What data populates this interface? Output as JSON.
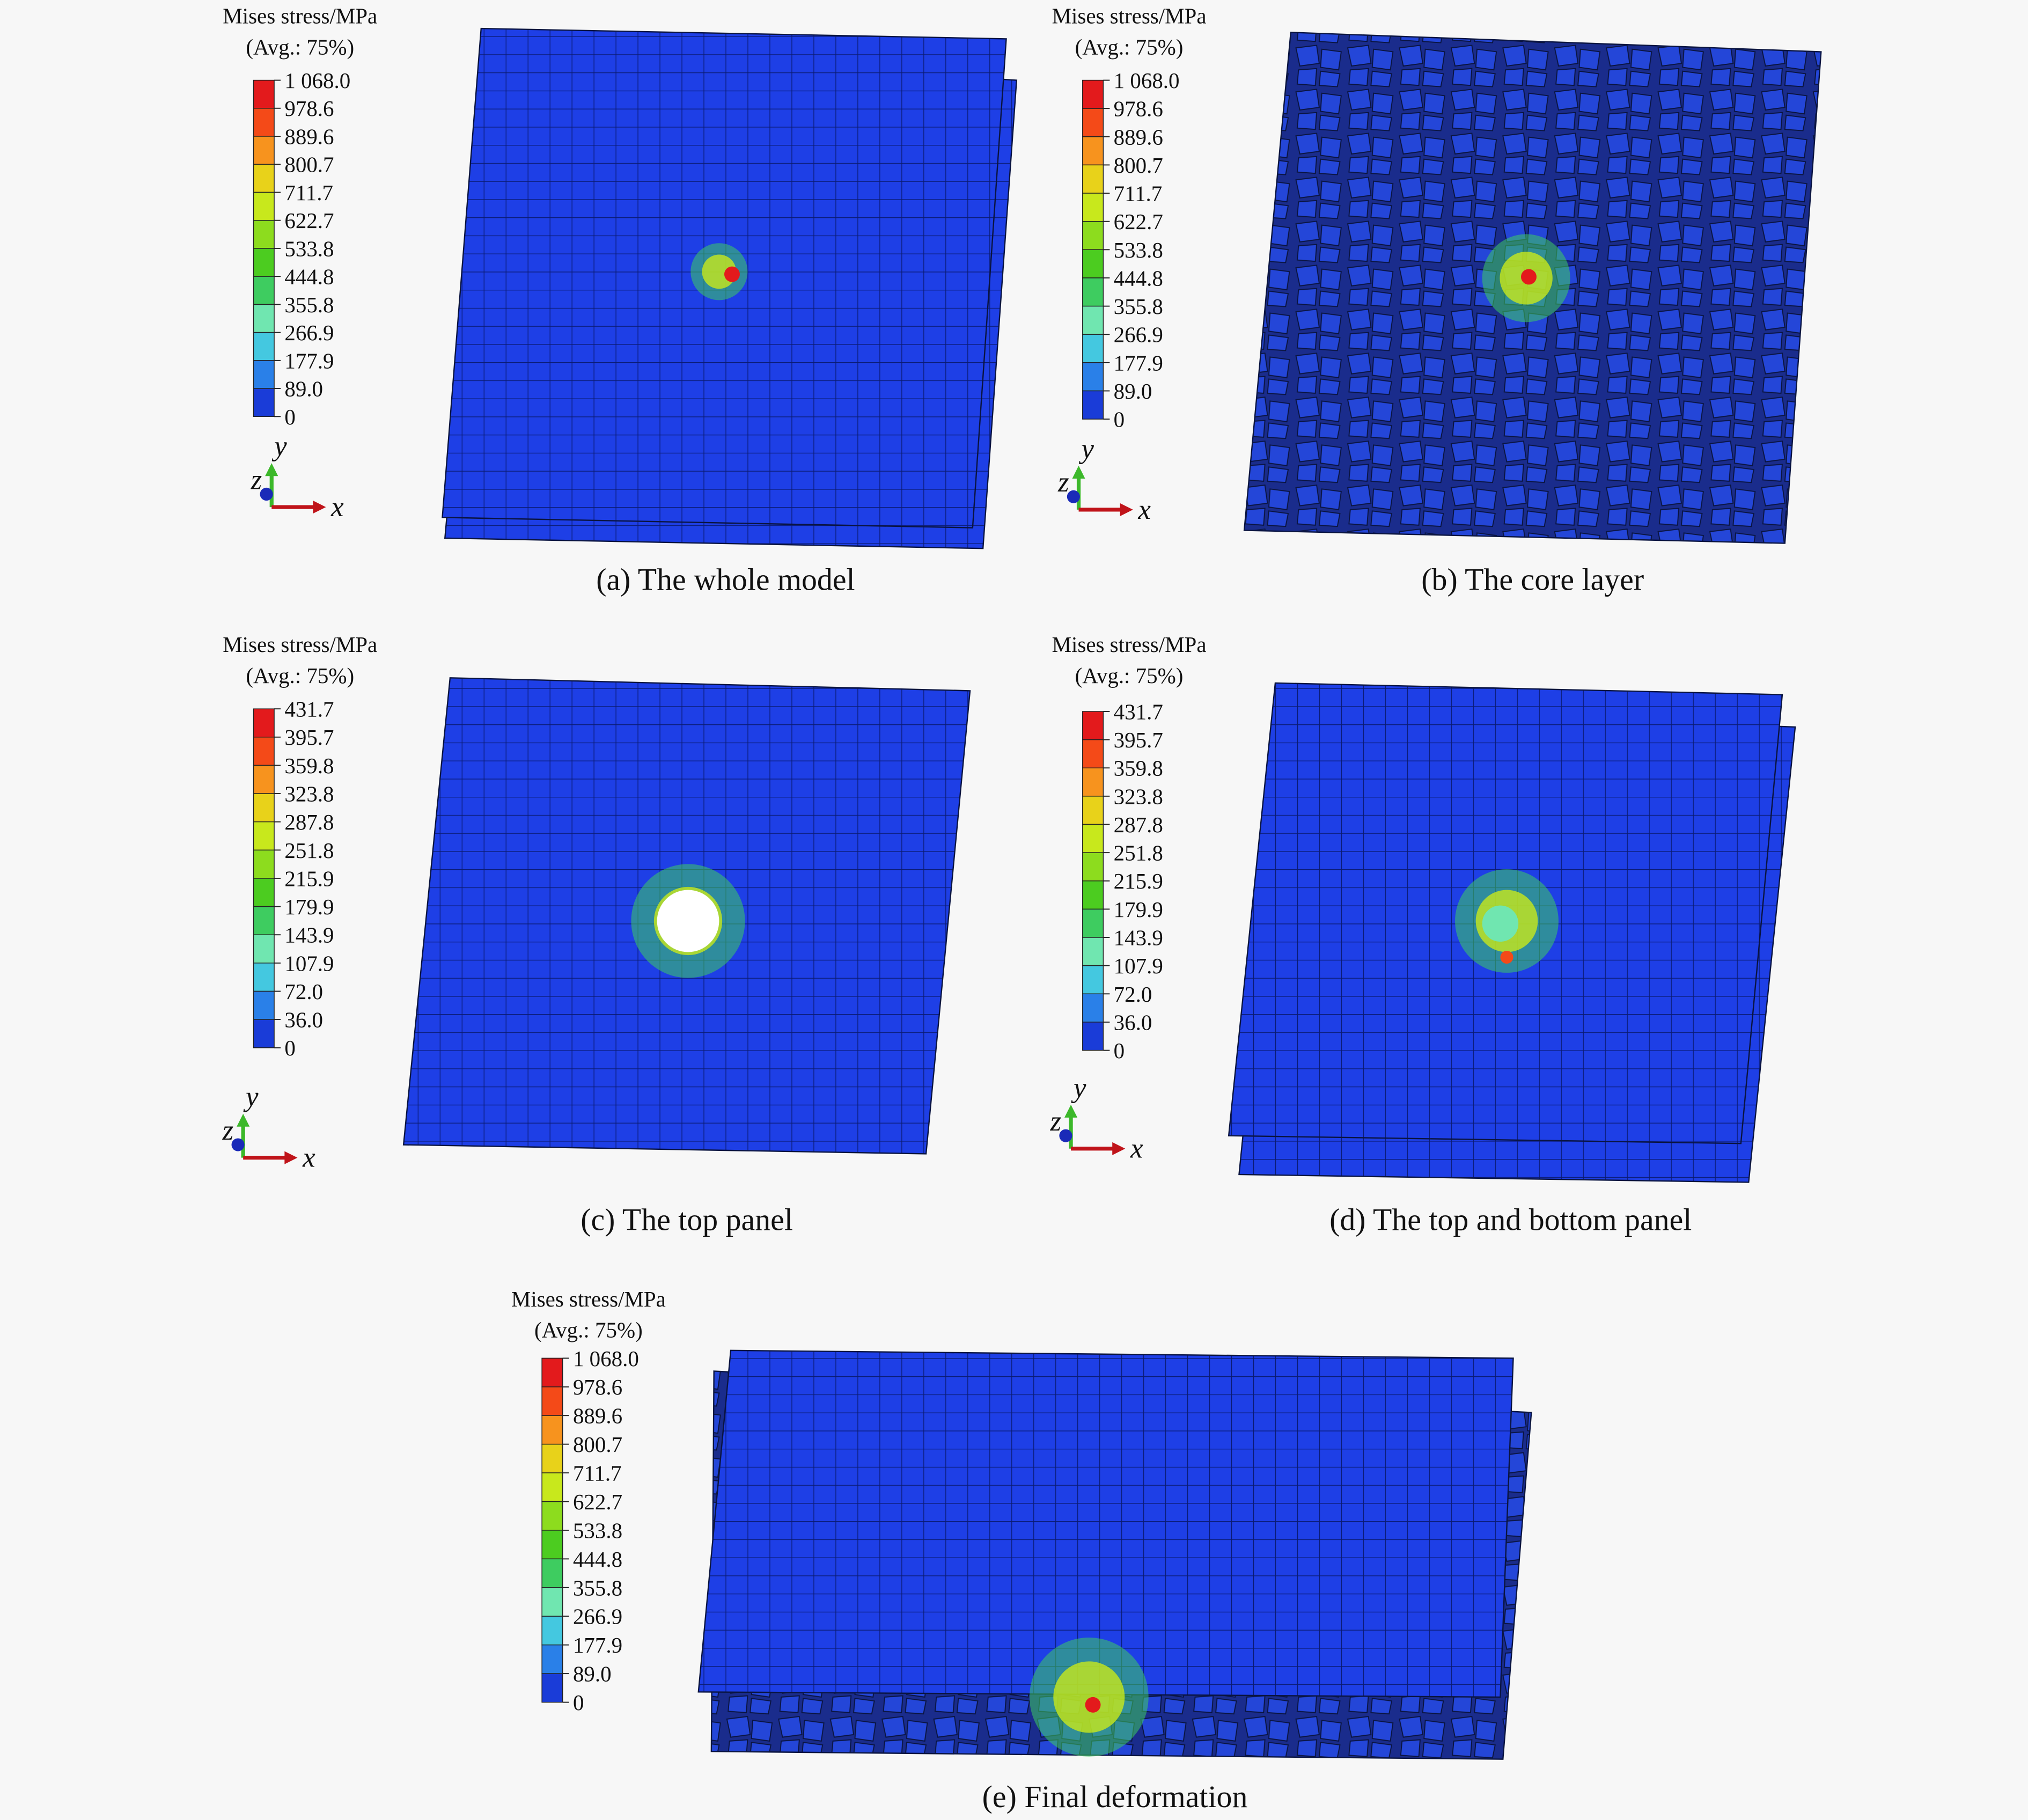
{
  "panels": [
    {
      "legend": {
        "title": "Mises stress/MPa",
        "subtitle": "(Avg.: 75%)",
        "labels": [
          "1 068.0",
          "978.6",
          "889.6",
          "800.7",
          "711.7",
          "622.7",
          "533.8",
          "444.8",
          "355.8",
          "266.9",
          "177.9",
          "89.0",
          "0"
        ]
      },
      "axes": {
        "y": "y",
        "z": "z",
        "x": "x"
      },
      "caption": "(a) The whole model"
    },
    {
      "legend": {
        "title": "Mises stress/MPa",
        "subtitle": "(Avg.: 75%)",
        "labels": [
          "1 068.0",
          "978.6",
          "889.6",
          "800.7",
          "711.7",
          "622.7",
          "533.8",
          "444.8",
          "355.8",
          "266.9",
          "177.9",
          "89.0",
          "0"
        ]
      },
      "axes": {
        "y": "y",
        "z": "z",
        "x": "x"
      },
      "caption": "(b) The core layer"
    },
    {
      "legend": {
        "title": "Mises stress/MPa",
        "subtitle": "(Avg.: 75%)",
        "labels": [
          "431.7",
          "395.7",
          "359.8",
          "323.8",
          "287.8",
          "251.8",
          "215.9",
          "179.9",
          "143.9",
          "107.9",
          "72.0",
          "36.0",
          "0"
        ]
      },
      "axes": {
        "y": "y",
        "z": "z",
        "x": "x"
      },
      "caption": "(c) The top panel"
    },
    {
      "legend": {
        "title": "Mises stress/MPa",
        "subtitle": "(Avg.: 75%)",
        "labels": [
          "431.7",
          "395.7",
          "359.8",
          "323.8",
          "287.8",
          "251.8",
          "215.9",
          "179.9",
          "143.9",
          "107.9",
          "72.0",
          "36.0",
          "0"
        ]
      },
      "axes": {
        "y": "y",
        "z": "z",
        "x": "x"
      },
      "caption": "(d) The top and bottom panel"
    },
    {
      "legend": {
        "title": "Mises stress/MPa",
        "subtitle": "(Avg.: 75%)",
        "labels": [
          "1 068.0",
          "978.6",
          "889.6",
          "800.7",
          "711.7",
          "622.7",
          "533.8",
          "444.8",
          "355.8",
          "266.9",
          "177.9",
          "89.0",
          "0"
        ]
      },
      "caption": "(e) Final deformation"
    }
  ]
}
